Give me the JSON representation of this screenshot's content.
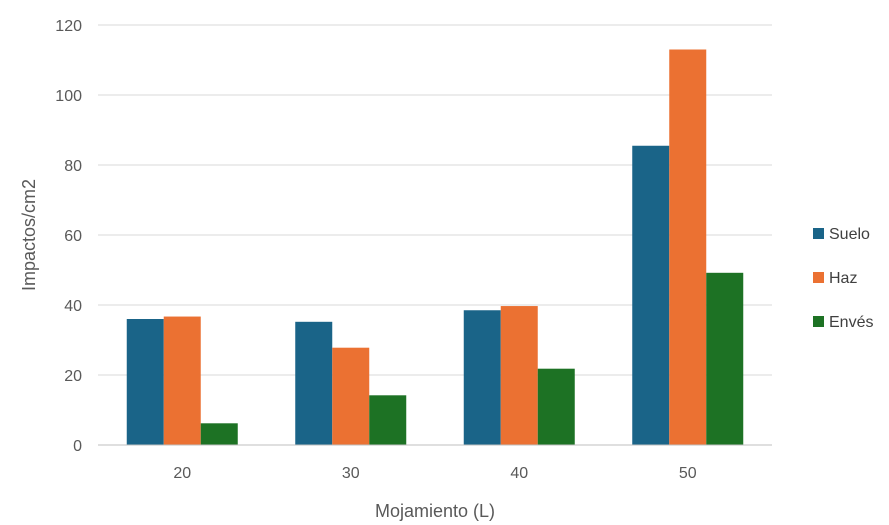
{
  "chart_data": {
    "type": "bar",
    "categories": [
      "20",
      "30",
      "40",
      "50"
    ],
    "series": [
      {
        "name": "Suelo",
        "color": "#1a6488",
        "values": [
          36,
          35.2,
          38.5,
          85.5
        ]
      },
      {
        "name": "Haz",
        "color": "#eb7132",
        "values": [
          36.7,
          27.8,
          39.7,
          113
        ]
      },
      {
        "name": "Envés",
        "color": "#1d7224",
        "values": [
          6.2,
          14.2,
          21.8,
          49.2
        ]
      }
    ],
    "xlabel": "Mojamiento (L)",
    "ylabel": "Impactos/cm2",
    "ylim": [
      0,
      120
    ],
    "yticks": [
      0,
      20,
      40,
      60,
      80,
      100,
      120
    ],
    "grid": true,
    "legend": "right"
  }
}
